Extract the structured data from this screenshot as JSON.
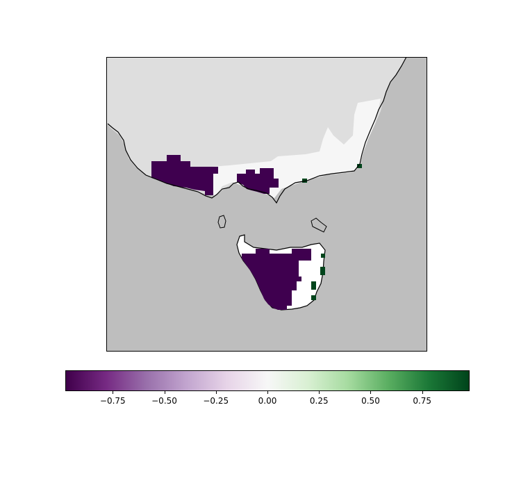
{
  "map": {
    "region": "South-eastern Australia and Tasmania",
    "land_color": "#dedede",
    "ocean_color": "#bebebe",
    "coastline_color": "#000000",
    "value_colors": {
      "strong_negative": "#3f004f",
      "near_zero_land": "#f6f6f6",
      "zero": "#ffffff",
      "strong_positive": "#00441b"
    }
  },
  "colorbar": {
    "colormap": "PRGn",
    "range": [
      -0.98,
      0.98
    ],
    "stops": [
      "#40004b",
      "#762a83",
      "#9970ab",
      "#c2a5cf",
      "#e7d4e8",
      "#f7f7f7",
      "#d9f0d3",
      "#a6dba0",
      "#5aae61",
      "#1b7837",
      "#00441b"
    ],
    "ticks": [
      {
        "value": -0.75,
        "label": "−0.75"
      },
      {
        "value": -0.5,
        "label": "−0.50"
      },
      {
        "value": -0.25,
        "label": "−0.25"
      },
      {
        "value": 0.0,
        "label": "0.00"
      },
      {
        "value": 0.25,
        "label": "0.25"
      },
      {
        "value": 0.5,
        "label": "0.50"
      },
      {
        "value": 0.75,
        "label": "0.75"
      }
    ]
  }
}
